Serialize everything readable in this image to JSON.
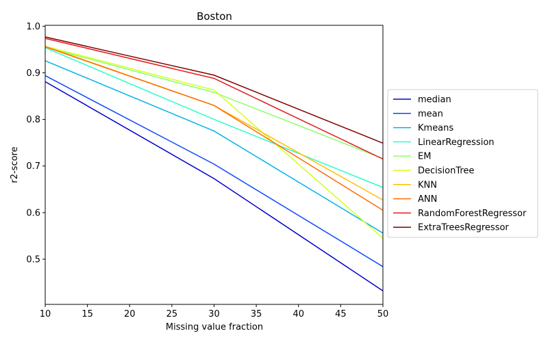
{
  "chart_data": {
    "type": "line",
    "title": "Boston",
    "xlabel": "Missing value fraction",
    "ylabel": "r2-score",
    "xlim": [
      10,
      50
    ],
    "ylim": [
      0.403,
      1.002
    ],
    "x": [
      10,
      30,
      50
    ],
    "xticks": [
      10,
      15,
      20,
      25,
      30,
      35,
      40,
      45,
      50
    ],
    "xtick_labels": [
      "10",
      "15",
      "20",
      "25",
      "30",
      "35",
      "40",
      "45",
      "50"
    ],
    "yticks": [
      0.5,
      0.6,
      0.7,
      0.8,
      0.9,
      1.0
    ],
    "ytick_labels": [
      "0.5",
      "0.6",
      "0.7",
      "0.8",
      "0.9",
      "1.0"
    ],
    "grid": false,
    "legend_position": "center-right-outside",
    "series": [
      {
        "name": "median",
        "color": "#0000cd",
        "values": [
          0.881,
          0.673,
          0.432
        ]
      },
      {
        "name": "mean",
        "color": "#0a47ff",
        "values": [
          0.894,
          0.704,
          0.484
        ]
      },
      {
        "name": "Kmeans",
        "color": "#00b4e6",
        "values": [
          0.926,
          0.775,
          0.556
        ]
      },
      {
        "name": "LinearRegression",
        "color": "#28ffc8",
        "values": [
          0.954,
          0.8,
          0.654
        ]
      },
      {
        "name": "EM",
        "color": "#8aff6a",
        "values": [
          0.955,
          0.858,
          0.716
        ]
      },
      {
        "name": "DecisionTree",
        "color": "#d4ff1a",
        "values": [
          0.957,
          0.863,
          0.545
        ]
      },
      {
        "name": "KNN",
        "color": "#ffbf00",
        "values": [
          0.957,
          0.83,
          0.627
        ]
      },
      {
        "name": "ANN",
        "color": "#ff6a00",
        "values": [
          0.956,
          0.83,
          0.605
        ]
      },
      {
        "name": "RandomForestRegressor",
        "color": "#e41a1c",
        "values": [
          0.974,
          0.888,
          0.715
        ]
      },
      {
        "name": "ExtraTreesRegressor",
        "color": "#800000",
        "values": [
          0.977,
          0.895,
          0.749
        ]
      }
    ]
  }
}
